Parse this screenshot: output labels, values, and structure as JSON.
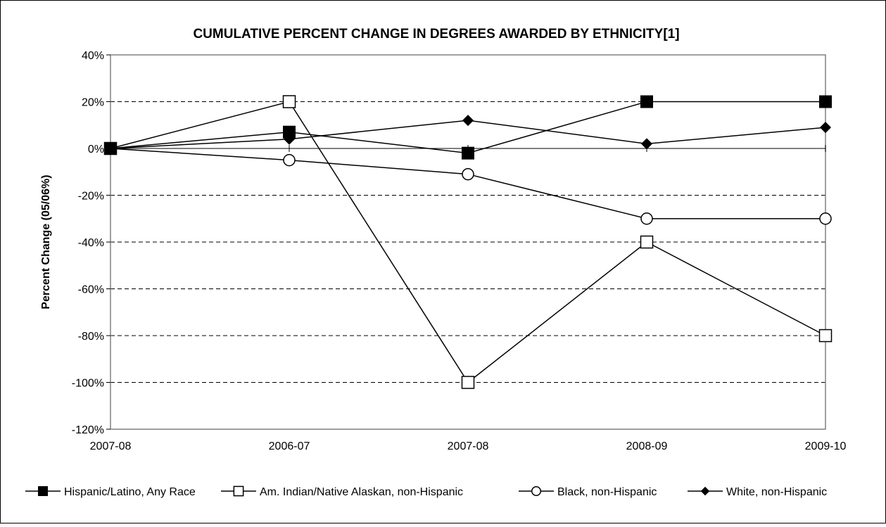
{
  "chart_data": {
    "type": "line",
    "title": "CUMULATIVE PERCENT CHANGE IN DEGREES AWARDED BY ETHNICITY[1]",
    "xlabel": "",
    "ylabel": "Percent Change (05/06%)",
    "categories": [
      "2007-08",
      "2006-07",
      "2007-08",
      "2008-09",
      "2009-10"
    ],
    "ylim": [
      -120,
      40
    ],
    "yticks": [
      40,
      20,
      0,
      -20,
      -40,
      -60,
      -80,
      -100,
      -120
    ],
    "ytick_labels": [
      "40%",
      "20%",
      "0%",
      "-20%",
      "-40%",
      "-60%",
      "-80%",
      "-100%",
      "-120%"
    ],
    "grid": "horizontal dashed",
    "legend_position": "bottom",
    "series": [
      {
        "name": "Hispanic/Latino, Any Race",
        "marker": "filled-square",
        "values": [
          0,
          7,
          -2,
          20,
          20
        ]
      },
      {
        "name": "Am. Indian/Native Alaskan, non-Hispanic",
        "marker": "open-square",
        "values": [
          0,
          20,
          -100,
          -40,
          -80
        ]
      },
      {
        "name": "Black, non-Hispanic",
        "marker": "open-circle",
        "values": [
          0,
          -5,
          -11,
          -30,
          -30
        ]
      },
      {
        "name": "White, non-Hispanic",
        "marker": "filled-diamond",
        "values": [
          0,
          4,
          12,
          2,
          9
        ]
      }
    ]
  }
}
